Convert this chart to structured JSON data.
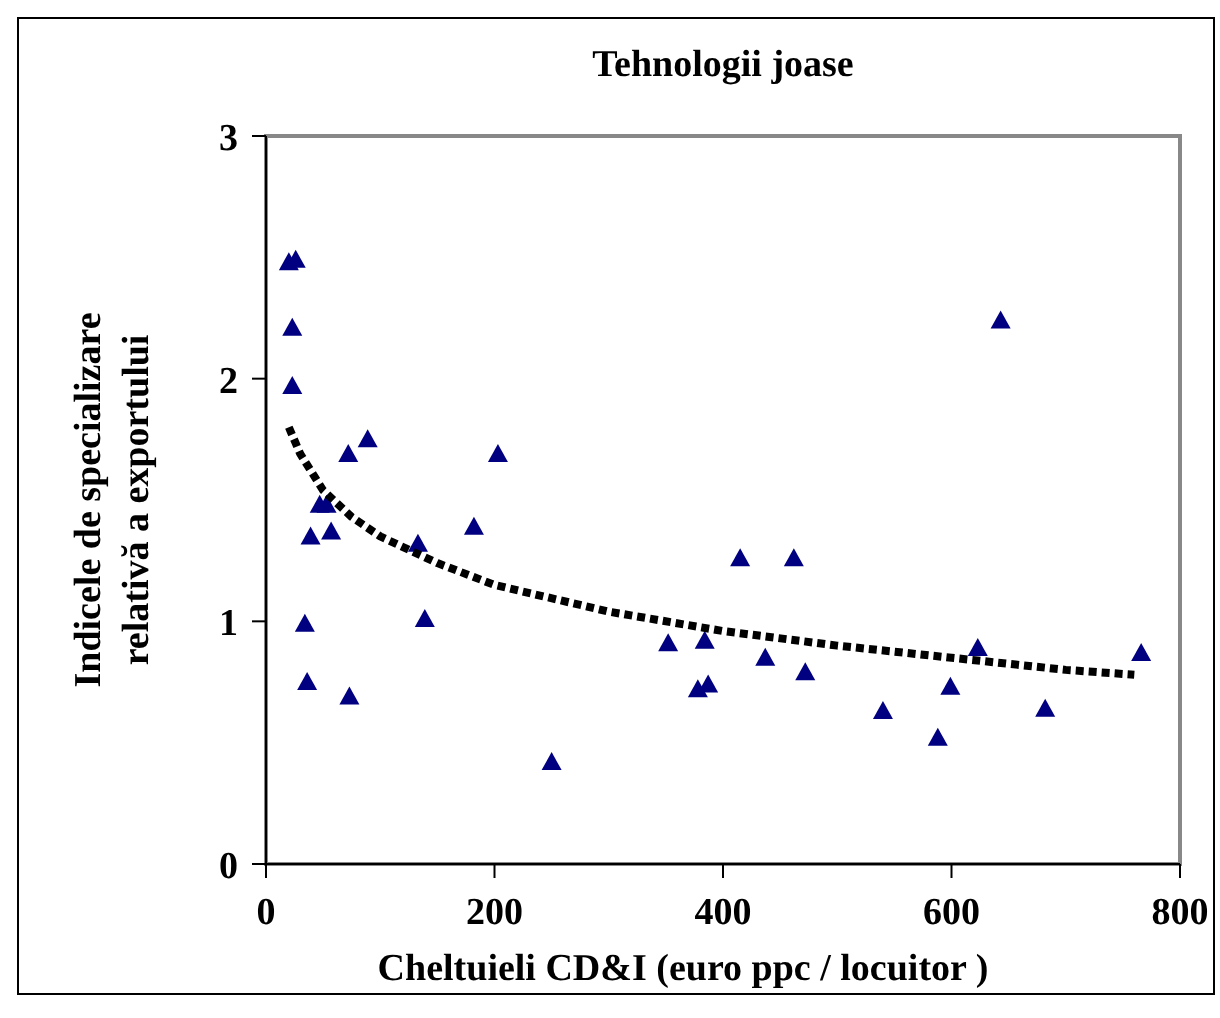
{
  "chart_data": {
    "type": "scatter",
    "title": "Tehnologii joase",
    "xlabel": "Cheltuieli CD&I (euro ppc / locuitor )",
    "ylabel": "Indicele de specializare relativă a exportului",
    "xlim": [
      0,
      800
    ],
    "ylim": [
      0,
      3
    ],
    "xticks": [
      0,
      200,
      400,
      600,
      800
    ],
    "yticks": [
      0,
      1,
      2,
      3
    ],
    "grid": false,
    "series": [
      {
        "color": "#000080",
        "marker": "triangle",
        "x": [
          20,
          26,
          23,
          23,
          34,
          36,
          39,
          47,
          53,
          57,
          72,
          89,
          73,
          133,
          139,
          182,
          203,
          250,
          352,
          384,
          378,
          387,
          415,
          462,
          437,
          472,
          540,
          588,
          599,
          623,
          643,
          682,
          766
        ],
        "values": [
          2.48,
          2.49,
          2.21,
          1.97,
          0.99,
          0.75,
          1.35,
          1.48,
          1.48,
          1.37,
          1.69,
          1.75,
          0.69,
          1.32,
          1.01,
          1.39,
          1.69,
          0.42,
          0.91,
          0.92,
          0.72,
          0.74,
          1.26,
          1.26,
          0.85,
          0.79,
          0.63,
          0.52,
          0.73,
          0.89,
          2.24,
          0.64,
          0.87
        ]
      },
      {
        "type": "line",
        "color": "#000000",
        "line_style": "dotted",
        "marker": "none",
        "x": [
          20,
          30,
          50,
          75,
          100,
          150,
          200,
          300,
          400,
          500,
          600,
          700,
          760
        ],
        "values": [
          1.8,
          1.69,
          1.54,
          1.43,
          1.35,
          1.24,
          1.15,
          1.04,
          0.96,
          0.9,
          0.85,
          0.8,
          0.78
        ]
      }
    ]
  }
}
